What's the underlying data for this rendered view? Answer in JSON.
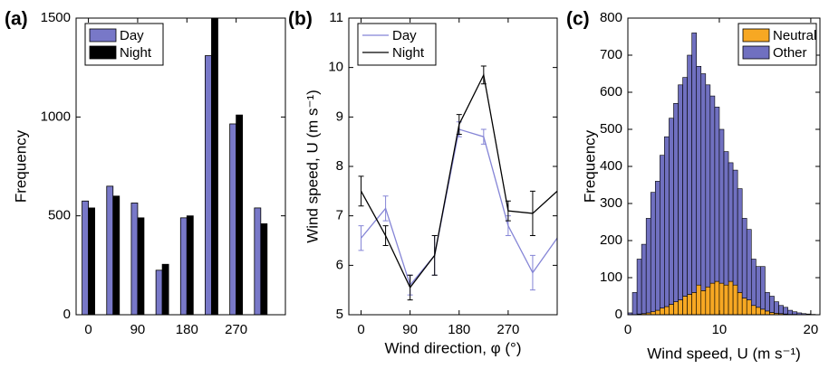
{
  "chart_data": [
    {
      "type": "bar",
      "title": "(a)",
      "y_label": "Frequency",
      "x": [
        0,
        45,
        90,
        135,
        180,
        225,
        270,
        315
      ],
      "xlim": [
        -22.5,
        360
      ],
      "xticks": [
        0,
        90,
        180,
        270
      ],
      "ylim": [
        0,
        1500
      ],
      "yticks": [
        0,
        500,
        1000,
        1500
      ],
      "legend": "upper left",
      "series": [
        {
          "name": "Day",
          "color": "#7878c8",
          "values": [
            575,
            650,
            565,
            225,
            490,
            1310,
            965,
            540
          ]
        },
        {
          "name": "Night",
          "color": "#000000",
          "values": [
            540,
            600,
            490,
            255,
            500,
            1500,
            1010,
            460
          ]
        }
      ]
    },
    {
      "type": "line",
      "title": "(b)",
      "x_label": "Wind direction, φ (°)",
      "y_label": "Wind speed, U (m s⁻¹)",
      "x": [
        0,
        45,
        90,
        135,
        180,
        225,
        270,
        315,
        360
      ],
      "xlim": [
        -22.5,
        360
      ],
      "xticks": [
        0,
        90,
        180,
        270
      ],
      "ylim": [
        5,
        11
      ],
      "yticks": [
        5,
        6,
        7,
        8,
        9,
        10,
        11
      ],
      "legend": "upper left",
      "series": [
        {
          "name": "Day",
          "color": "#8585d6",
          "values": [
            6.55,
            7.15,
            5.6,
            6.2,
            8.75,
            8.6,
            6.8,
            5.85,
            6.55
          ],
          "errors": [
            0.25,
            0.25,
            0.2,
            0.4,
            0.15,
            0.15,
            0.2,
            0.35,
            null
          ]
        },
        {
          "name": "Night",
          "color": "#000000",
          "values": [
            7.5,
            6.6,
            5.55,
            6.2,
            8.85,
            9.85,
            7.1,
            7.05,
            7.5
          ],
          "errors": [
            0.3,
            0.2,
            0.25,
            0.4,
            0.2,
            0.18,
            0.2,
            0.45,
            null
          ]
        }
      ]
    },
    {
      "type": "histogram",
      "title": "(c)",
      "x_label": "Wind speed, U (m s⁻¹)",
      "y_label": "Frequency",
      "bins": [
        0,
        0.5,
        1,
        1.5,
        2,
        2.5,
        3,
        3.5,
        4,
        4.5,
        5,
        5.5,
        6,
        6.5,
        7,
        7.5,
        8,
        8.5,
        9,
        9.5,
        10,
        10.5,
        11,
        11.5,
        12,
        12.5,
        13,
        13.5,
        14,
        14.5,
        15,
        15.5,
        16,
        16.5,
        17,
        17.5,
        18,
        18.5,
        19,
        19.5,
        20,
        20.5
      ],
      "xlim": [
        0,
        21
      ],
      "xticks": [
        0,
        10,
        20
      ],
      "ylim": [
        0,
        800
      ],
      "yticks": [
        0,
        100,
        200,
        300,
        400,
        500,
        600,
        700,
        800
      ],
      "legend": "upper right",
      "stacked": true,
      "series": [
        {
          "name": "Neutral",
          "color": "#f7a823",
          "values": [
            0,
            0,
            2,
            3,
            5,
            8,
            12,
            18,
            22,
            28,
            35,
            40,
            50,
            55,
            60,
            80,
            65,
            75,
            85,
            90,
            85,
            80,
            90,
            80,
            60,
            45,
            40,
            25,
            20,
            15,
            10,
            6,
            4,
            3,
            2,
            1,
            1,
            0,
            0,
            0,
            0
          ]
        },
        {
          "name": "Other",
          "color": "#7070c0",
          "values": [
            5,
            60,
            148,
            187,
            255,
            322,
            348,
            412,
            458,
            502,
            535,
            580,
            590,
            645,
            700,
            590,
            585,
            545,
            505,
            470,
            415,
            360,
            320,
            310,
            280,
            215,
            190,
            125,
            110,
            115,
            50,
            44,
            31,
            22,
            18,
            11,
            7,
            5,
            3,
            2,
            1
          ]
        }
      ]
    }
  ]
}
